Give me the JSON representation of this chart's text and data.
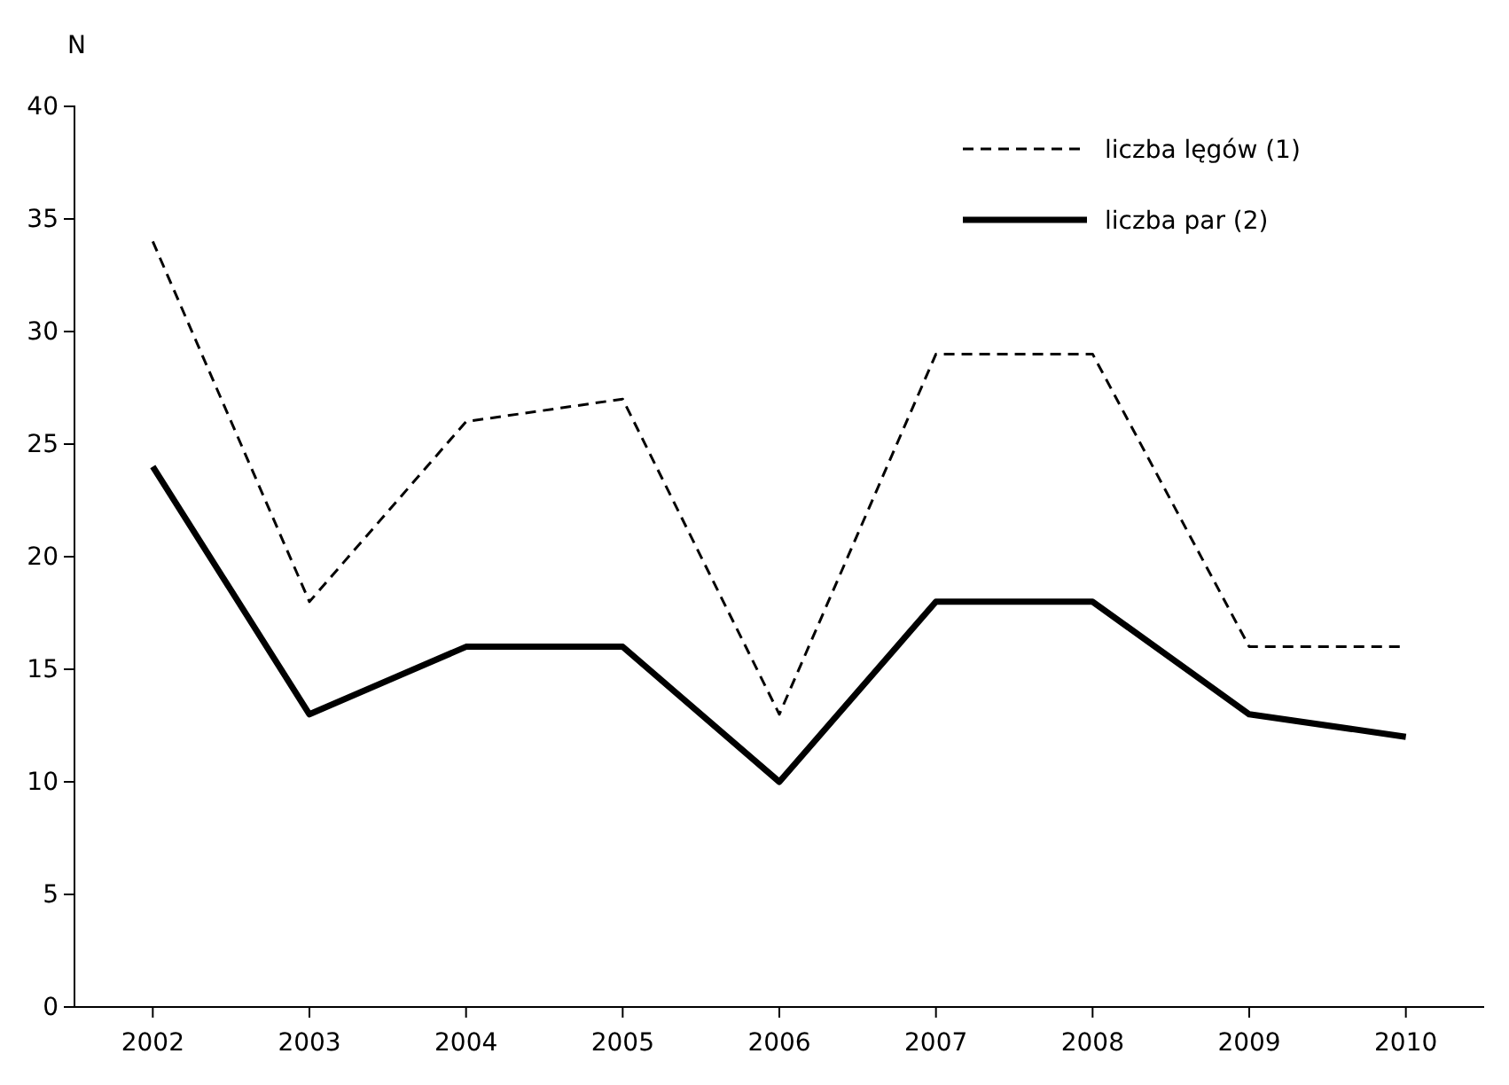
{
  "chart_data": {
    "type": "line",
    "ylabel": "N",
    "categories": [
      "2002",
      "2003",
      "2004",
      "2005",
      "2006",
      "2007",
      "2008",
      "2009",
      "2010"
    ],
    "series": [
      {
        "name": "liczba lęgów (1)",
        "color": "#000000",
        "line_style": "dashed",
        "values": [
          34,
          18,
          26,
          27,
          13,
          29,
          29,
          16,
          16
        ]
      },
      {
        "name": "liczba par (2)",
        "color": "#000000",
        "line_style": "solid",
        "values": [
          24,
          13,
          16,
          16,
          10,
          18,
          18,
          13,
          12
        ]
      }
    ],
    "ylim": [
      0,
      40
    ],
    "yticks": [
      0,
      5,
      10,
      15,
      20,
      25,
      30,
      35,
      40
    ],
    "grid": false,
    "legend": "top right",
    "marker": "none"
  }
}
